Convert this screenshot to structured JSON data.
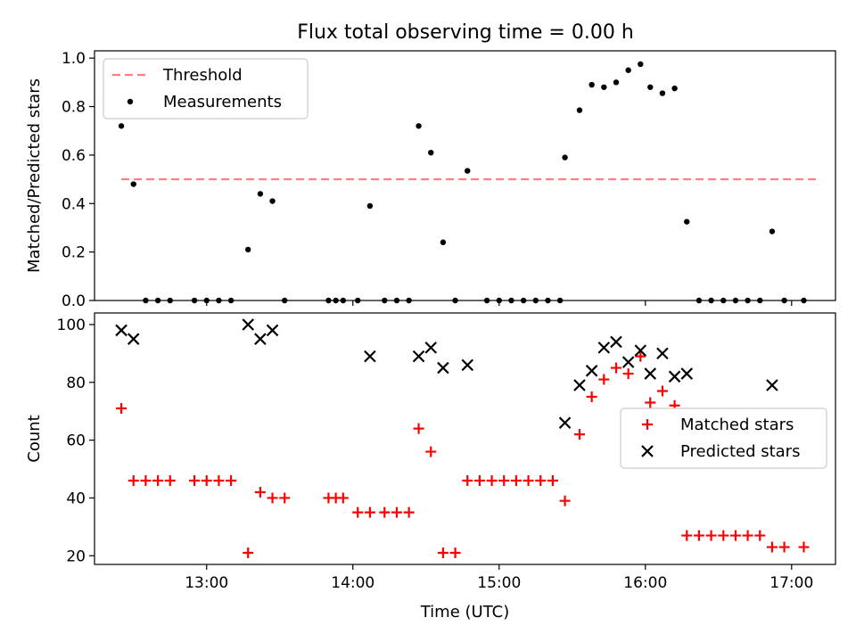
{
  "title": "Flux total observing time = 0.00 h",
  "colors": {
    "threshold": "#ff7f7f",
    "measurement": "#000000",
    "matched": "#ff0000",
    "predicted": "#000000"
  },
  "chart_data": [
    {
      "type": "scatter",
      "panel": "top",
      "ylabel": "Matched/Predicted stars",
      "xlabel": "",
      "xlim": [
        "12:14",
        "17:18"
      ],
      "ylim": [
        0,
        1.03
      ],
      "yticks": [
        0.0,
        0.2,
        0.4,
        0.6,
        0.8,
        1.0
      ],
      "ytick_labels": [
        "0.0",
        "0.2",
        "0.4",
        "0.6",
        "0.8",
        "1.0"
      ],
      "legend": {
        "position": "upper-left",
        "entries": [
          "Threshold",
          "Measurements"
        ]
      },
      "threshold": {
        "name": "Threshold",
        "y": 0.5,
        "x_range": [
          "12:25",
          "17:10"
        ],
        "style": "dashed"
      },
      "series": [
        {
          "name": "Measurements",
          "marker": "dot",
          "x": [
            "12:25",
            "12:30",
            "12:35",
            "12:40",
            "12:45",
            "12:55",
            "13:00",
            "13:05",
            "13:10",
            "13:17",
            "13:22",
            "13:27",
            "13:32",
            "13:50",
            "13:53",
            "13:56",
            "14:02",
            "14:07",
            "14:13",
            "14:18",
            "14:23",
            "14:27",
            "14:32",
            "14:37",
            "14:42",
            "14:47",
            "14:55",
            "15:00",
            "15:05",
            "15:10",
            "15:15",
            "15:20",
            "15:25",
            "15:27",
            "15:33",
            "15:38",
            "15:43",
            "15:48",
            "15:53",
            "15:58",
            "16:02",
            "16:07",
            "16:12",
            "16:17",
            "16:22",
            "16:27",
            "16:32",
            "16:37",
            "16:42",
            "16:47",
            "16:52",
            "16:57",
            "17:05"
          ],
          "y": [
            0.72,
            0.48,
            0,
            0,
            0,
            0,
            0,
            0,
            0,
            0.21,
            0.44,
            0.41,
            0,
            0,
            0,
            0,
            0,
            0.39,
            0,
            0,
            0,
            0.72,
            0.61,
            0.24,
            0,
            0.535,
            0,
            0,
            0,
            0,
            0,
            0,
            0,
            0.59,
            0.785,
            0.89,
            0.88,
            0.9,
            0.95,
            0.975,
            0.88,
            0.855,
            0.875,
            0.325,
            0,
            0,
            0,
            0,
            0,
            0,
            0.285,
            0,
            0
          ]
        }
      ]
    },
    {
      "type": "scatter",
      "panel": "bottom",
      "xlabel": "Time (UTC)",
      "ylabel": "Count",
      "xlim": [
        "12:14",
        "17:18"
      ],
      "ylim": [
        17,
        104
      ],
      "yticks": [
        20,
        40,
        60,
        80,
        100
      ],
      "ytick_labels": [
        "20",
        "40",
        "60",
        "80",
        "100"
      ],
      "xticks": [
        "13:00",
        "14:00",
        "15:00",
        "16:00",
        "17:00"
      ],
      "xtick_labels": [
        "13:00",
        "14:00",
        "15:00",
        "16:00",
        "17:00"
      ],
      "legend": {
        "position": "center-right",
        "entries": [
          "Matched stars",
          "Predicted stars"
        ]
      },
      "series": [
        {
          "name": "Matched stars",
          "marker": "plus",
          "x": [
            "12:25",
            "12:30",
            "12:35",
            "12:40",
            "12:45",
            "12:55",
            "13:00",
            "13:05",
            "13:10",
            "13:17",
            "13:22",
            "13:27",
            "13:32",
            "13:50",
            "13:53",
            "13:56",
            "14:02",
            "14:07",
            "14:13",
            "14:18",
            "14:23",
            "14:27",
            "14:32",
            "14:37",
            "14:42",
            "14:47",
            "14:52",
            "14:57",
            "15:02",
            "15:07",
            "15:12",
            "15:17",
            "15:22",
            "15:27",
            "15:33",
            "15:38",
            "15:43",
            "15:48",
            "15:53",
            "15:58",
            "16:02",
            "16:07",
            "16:12",
            "16:17",
            "16:22",
            "16:27",
            "16:32",
            "16:37",
            "16:42",
            "16:47",
            "16:52",
            "16:57",
            "17:05"
          ],
          "y": [
            71,
            46,
            46,
            46,
            46,
            46,
            46,
            46,
            46,
            21,
            42,
            40,
            40,
            40,
            40,
            40,
            35,
            35,
            35,
            35,
            35,
            64,
            56,
            21,
            21,
            46,
            46,
            46,
            46,
            46,
            46,
            46,
            46,
            39,
            62,
            75,
            81,
            85,
            83,
            89,
            73,
            77,
            72,
            27,
            27,
            27,
            27,
            27,
            27,
            27,
            23,
            23,
            23
          ]
        },
        {
          "name": "Predicted stars",
          "marker": "x",
          "x": [
            "12:25",
            "12:30",
            "13:17",
            "13:22",
            "13:27",
            "14:07",
            "14:27",
            "14:32",
            "14:37",
            "14:47",
            "15:27",
            "15:33",
            "15:38",
            "15:43",
            "15:48",
            "15:53",
            "15:58",
            "16:02",
            "16:07",
            "16:12",
            "16:17",
            "16:52"
          ],
          "y": [
            98,
            95,
            100,
            95,
            98,
            89,
            89,
            92,
            85,
            86,
            66,
            79,
            84,
            92,
            94,
            87,
            91,
            83,
            90,
            82,
            83,
            79
          ]
        }
      ]
    }
  ]
}
